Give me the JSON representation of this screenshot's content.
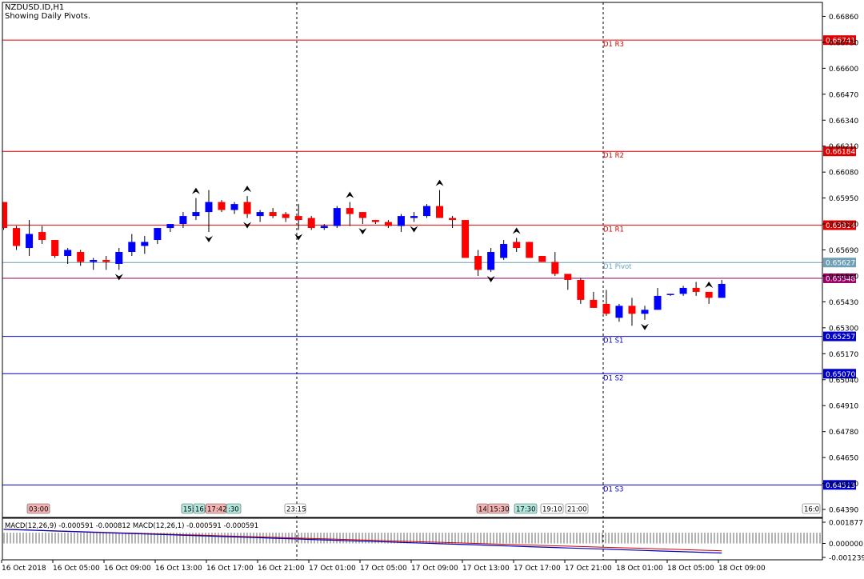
{
  "header": {
    "symbol": "NZDUSD.ID,H1",
    "subtitle": "Showing Daily Pivots."
  },
  "colors": {
    "bull": "#0000ff",
    "bear": "#ff0000",
    "resistance": "#e00000",
    "support": "#0000c8",
    "pivot": "#6fa0b6",
    "level": "#9a0066",
    "macd_main": "#0000c0",
    "macd_signal": "#d00000"
  },
  "chart_data": {
    "type": "candlestick",
    "price_axis": {
      "range": [
        0.6435,
        0.6693
      ],
      "ticks": [
        "0.66860",
        "0.66730",
        "0.66600",
        "0.66470",
        "0.66340",
        "0.66210",
        "0.66080",
        "0.65950",
        "0.65820",
        "0.65690",
        "0.65560",
        "0.65430",
        "0.65300",
        "0.65170",
        "0.65040",
        "0.64910",
        "0.64780",
        "0.64650",
        "0.64520",
        "0.64390"
      ]
    },
    "time_axis_labels": [
      "16 Oct 2018",
      "16 Oct 05:00",
      "16 Oct 09:00",
      "16 Oct 13:00",
      "16 Oct 17:00",
      "16 Oct 21:00",
      "17 Oct 01:00",
      "17 Oct 05:00",
      "17 Oct 09:00",
      "17 Oct 13:00",
      "17 Oct 17:00",
      "17 Oct 21:00",
      "18 Oct 01:00",
      "18 Oct 05:00",
      "18 Oct 09:00"
    ],
    "pivot_levels": [
      {
        "name": "D1 R3",
        "value": 0.66741,
        "label": "0.66741",
        "role": "resistance"
      },
      {
        "name": "D1 R2",
        "value": 0.66184,
        "label": "0.66184",
        "role": "resistance"
      },
      {
        "name": "D1 R1",
        "value": 0.65814,
        "label": "0.65814",
        "role": "resistance"
      },
      {
        "name": "D1 Pivot",
        "value": 0.65627,
        "label": "0.65627",
        "role": "pivot"
      },
      {
        "name": "",
        "value": 0.65548,
        "label": "0.65548",
        "role": "level"
      },
      {
        "name": "D1 S1",
        "value": 0.65257,
        "label": "0.65257",
        "role": "support"
      },
      {
        "name": "D1 S2",
        "value": 0.6507,
        "label": "0.65070",
        "role": "support"
      },
      {
        "name": "D1 S3",
        "value": 0.64513,
        "label": "0.64513",
        "role": "support"
      }
    ],
    "candles": [
      {
        "o": 0.6593,
        "h": 0.6593,
        "l": 0.6579,
        "c": 0.658
      },
      {
        "o": 0.658,
        "h": 0.6581,
        "l": 0.6569,
        "c": 0.6571
      },
      {
        "o": 0.657,
        "h": 0.6584,
        "l": 0.6566,
        "c": 0.6577
      },
      {
        "o": 0.6578,
        "h": 0.6581,
        "l": 0.6572,
        "c": 0.6574
      },
      {
        "o": 0.6574,
        "h": 0.6574,
        "l": 0.6565,
        "c": 0.6566
      },
      {
        "o": 0.6566,
        "h": 0.657,
        "l": 0.6562,
        "c": 0.6569
      },
      {
        "o": 0.6568,
        "h": 0.6569,
        "l": 0.6561,
        "c": 0.6563
      },
      {
        "o": 0.6563,
        "h": 0.6565,
        "l": 0.6559,
        "c": 0.6564
      },
      {
        "o": 0.6564,
        "h": 0.6566,
        "l": 0.6559,
        "c": 0.6563
      },
      {
        "o": 0.6562,
        "h": 0.657,
        "l": 0.6559,
        "c": 0.6568
      },
      {
        "o": 0.6568,
        "h": 0.6577,
        "l": 0.6566,
        "c": 0.6573
      },
      {
        "o": 0.6571,
        "h": 0.6576,
        "l": 0.6567,
        "c": 0.6573
      },
      {
        "o": 0.6574,
        "h": 0.658,
        "l": 0.6572,
        "c": 0.658
      },
      {
        "o": 0.658,
        "h": 0.6582,
        "l": 0.6578,
        "c": 0.6582
      },
      {
        "o": 0.6582,
        "h": 0.6588,
        "l": 0.658,
        "c": 0.6586
      },
      {
        "o": 0.6586,
        "h": 0.6595,
        "l": 0.6584,
        "c": 0.6588
      },
      {
        "o": 0.6588,
        "h": 0.6599,
        "l": 0.6578,
        "c": 0.6593
      },
      {
        "o": 0.6593,
        "h": 0.6594,
        "l": 0.6588,
        "c": 0.6589
      },
      {
        "o": 0.6589,
        "h": 0.6593,
        "l": 0.6587,
        "c": 0.6592
      },
      {
        "o": 0.6593,
        "h": 0.6596,
        "l": 0.6585,
        "c": 0.6587
      },
      {
        "o": 0.6586,
        "h": 0.6589,
        "l": 0.6583,
        "c": 0.6588
      },
      {
        "o": 0.6588,
        "h": 0.659,
        "l": 0.6585,
        "c": 0.6586
      },
      {
        "o": 0.6587,
        "h": 0.6588,
        "l": 0.6583,
        "c": 0.6585
      },
      {
        "o": 0.6586,
        "h": 0.6592,
        "l": 0.6579,
        "c": 0.6584
      },
      {
        "o": 0.6585,
        "h": 0.6586,
        "l": 0.6579,
        "c": 0.658
      },
      {
        "o": 0.658,
        "h": 0.6582,
        "l": 0.6579,
        "c": 0.6581
      },
      {
        "o": 0.6581,
        "h": 0.6591,
        "l": 0.658,
        "c": 0.659
      },
      {
        "o": 0.659,
        "h": 0.6593,
        "l": 0.6581,
        "c": 0.6587
      },
      {
        "o": 0.6588,
        "h": 0.6588,
        "l": 0.6582,
        "c": 0.6585
      },
      {
        "o": 0.6584,
        "h": 0.6584,
        "l": 0.6582,
        "c": 0.6583
      },
      {
        "o": 0.6583,
        "h": 0.6584,
        "l": 0.658,
        "c": 0.6581
      },
      {
        "o": 0.6581,
        "h": 0.6587,
        "l": 0.6578,
        "c": 0.6586
      },
      {
        "o": 0.6585,
        "h": 0.6588,
        "l": 0.6583,
        "c": 0.6586
      },
      {
        "o": 0.6586,
        "h": 0.6592,
        "l": 0.6585,
        "c": 0.6591
      },
      {
        "o": 0.6591,
        "h": 0.6599,
        "l": 0.6585,
        "c": 0.6585
      },
      {
        "o": 0.6585,
        "h": 0.6586,
        "l": 0.658,
        "c": 0.6584
      },
      {
        "o": 0.6584,
        "h": 0.6584,
        "l": 0.6565,
        "c": 0.6565
      },
      {
        "o": 0.6566,
        "h": 0.6569,
        "l": 0.6556,
        "c": 0.6559
      },
      {
        "o": 0.6559,
        "h": 0.657,
        "l": 0.6558,
        "c": 0.6568
      },
      {
        "o": 0.6565,
        "h": 0.6574,
        "l": 0.6564,
        "c": 0.6572
      },
      {
        "o": 0.6573,
        "h": 0.6575,
        "l": 0.6568,
        "c": 0.657
      },
      {
        "o": 0.6573,
        "h": 0.6573,
        "l": 0.6565,
        "c": 0.6565
      },
      {
        "o": 0.6566,
        "h": 0.6566,
        "l": 0.6563,
        "c": 0.6563
      },
      {
        "o": 0.6563,
        "h": 0.6568,
        "l": 0.6556,
        "c": 0.6557
      },
      {
        "o": 0.6557,
        "h": 0.6557,
        "l": 0.6549,
        "c": 0.6554
      },
      {
        "o": 0.6554,
        "h": 0.6555,
        "l": 0.6542,
        "c": 0.6544
      },
      {
        "o": 0.6544,
        "h": 0.6548,
        "l": 0.654,
        "c": 0.654
      },
      {
        "o": 0.6542,
        "h": 0.6549,
        "l": 0.6536,
        "c": 0.6537
      },
      {
        "o": 0.6535,
        "h": 0.6542,
        "l": 0.6533,
        "c": 0.6541
      },
      {
        "o": 0.6541,
        "h": 0.6545,
        "l": 0.6531,
        "c": 0.6537
      },
      {
        "o": 0.6537,
        "h": 0.6541,
        "l": 0.6534,
        "c": 0.6539
      },
      {
        "o": 0.6539,
        "h": 0.655,
        "l": 0.6539,
        "c": 0.6546
      },
      {
        "o": 0.6547,
        "h": 0.6547,
        "l": 0.6546,
        "c": 0.6547
      },
      {
        "o": 0.6547,
        "h": 0.6551,
        "l": 0.6546,
        "c": 0.655
      },
      {
        "o": 0.655,
        "h": 0.6553,
        "l": 0.6546,
        "c": 0.6548
      },
      {
        "o": 0.6548,
        "h": 0.6548,
        "l": 0.6542,
        "c": 0.6545
      },
      {
        "o": 0.6545,
        "h": 0.6554,
        "l": 0.6545,
        "c": 0.6552
      }
    ],
    "fractals": {
      "up": [
        15,
        19,
        27,
        34,
        40,
        55
      ],
      "down": [
        9,
        16,
        19,
        23,
        28,
        32,
        38,
        50
      ]
    },
    "session_labels": [
      {
        "text": "03:00",
        "style": "red"
      },
      {
        "text": "15:",
        "style": "cyan"
      },
      {
        "text": "16:",
        "style": "cyan"
      },
      {
        "text": "17:42",
        "style": "red"
      },
      {
        "text": ":30",
        "style": "cyan"
      },
      {
        "text": "23:15",
        "style": "none"
      },
      {
        "text": "14:",
        "style": "red"
      },
      {
        "text": "15:30",
        "style": "red"
      },
      {
        "text": "17:30",
        "style": "cyan"
      },
      {
        "text": "19:10",
        "style": "none"
      },
      {
        "text": "21:00",
        "style": "none"
      },
      {
        "text": "16:0",
        "style": "none"
      }
    ],
    "macd": {
      "label": "MACD(12,26,9) -0.000591 -0.000812 MACD(12,26,1) -0.000591 -0.000591",
      "ticks": [
        "0.001877",
        "0.000000",
        "-0.001239"
      ],
      "range": [
        -0.001239,
        0.001877
      ]
    }
  }
}
